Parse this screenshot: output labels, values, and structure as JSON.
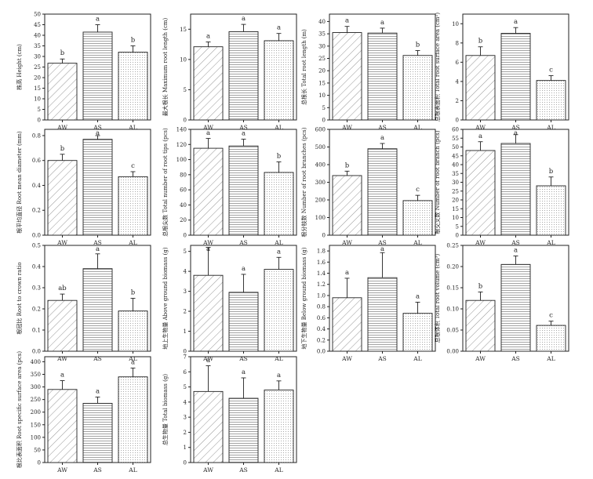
{
  "chart_data": [
    {
      "type": "bar",
      "ylabel": "株高 Height (cm)",
      "categories": [
        "AW",
        "AS",
        "AL"
      ],
      "values": [
        26.8,
        41.5,
        32.0
      ],
      "errors": [
        2.0,
        3.5,
        3.0
      ],
      "letters": [
        "b",
        "a",
        "b"
      ],
      "ylim": [
        0,
        50
      ],
      "yticks": [
        "0",
        "5",
        "10",
        "15",
        "20",
        "25",
        "30",
        "35",
        "40",
        "45",
        "50"
      ],
      "grid": false
    },
    {
      "type": "bar",
      "ylabel": "最大根长 Maximum root length (cm)",
      "categories": [
        "AW",
        "AS",
        "AL"
      ],
      "values": [
        12.1,
        14.6,
        13.1
      ],
      "errors": [
        0.8,
        1.2,
        1.2
      ],
      "letters": [
        "a",
        "a",
        "a"
      ],
      "ylim": [
        0,
        17.5
      ],
      "yticks": [
        "0",
        "5",
        "10",
        "15"
      ],
      "grid": false
    },
    {
      "type": "bar",
      "ylabel": "总根长 Total root length (m)",
      "categories": [
        "AW",
        "AS",
        "AL"
      ],
      "values": [
        35.5,
        35.3,
        26.2
      ],
      "errors": [
        2.5,
        2.0,
        2.0
      ],
      "letters": [
        "a",
        "a",
        "b"
      ],
      "ylim": [
        0,
        43
      ],
      "yticks": [
        "0",
        "5",
        "10",
        "15",
        "20",
        "25",
        "30",
        "35",
        "40"
      ],
      "grid": false
    },
    {
      "type": "bar",
      "ylabel": "总根表面积 Total root surface area (cm²)",
      "categories": [
        "AW",
        "AS",
        "AL"
      ],
      "values": [
        6.7,
        9.0,
        4.1
      ],
      "errors": [
        0.9,
        0.6,
        0.5
      ],
      "letters": [
        "b",
        "a",
        "c"
      ],
      "ylim": [
        0,
        11
      ],
      "yticks": [
        "0",
        "2",
        "4",
        "6",
        "8",
        "10"
      ],
      "grid": false
    },
    {
      "type": "bar",
      "ylabel": "根平均直径 Root mean diameter (mm)",
      "categories": [
        "AW",
        "AS",
        "AL"
      ],
      "values": [
        0.6,
        0.77,
        0.47
      ],
      "errors": [
        0.05,
        0.03,
        0.04
      ],
      "letters": [
        "b",
        "a",
        "c"
      ],
      "ylim": [
        0,
        0.85
      ],
      "yticks": [
        "0.0",
        "0.2",
        "0.4",
        "0.6",
        "0.8"
      ],
      "grid": false
    },
    {
      "type": "bar",
      "ylabel": "总根尖数 Total number of root tips (pcs)",
      "categories": [
        "AW",
        "AS",
        "AL"
      ],
      "values": [
        115,
        118,
        83
      ],
      "errors": [
        13,
        9,
        14
      ],
      "letters": [
        "a",
        "a",
        "b"
      ],
      "ylim": [
        0,
        140
      ],
      "yticks": [
        "0",
        "20",
        "40",
        "60",
        "80",
        "100",
        "120",
        "140"
      ],
      "grid": false
    },
    {
      "type": "bar",
      "ylabel": "根分枝数 Number of root branches (pcs)",
      "categories": [
        "AW",
        "AS",
        "AL"
      ],
      "values": [
        338,
        490,
        196
      ],
      "errors": [
        25,
        30,
        30
      ],
      "letters": [
        "b",
        "a",
        "c"
      ],
      "ylim": [
        0,
        600
      ],
      "yticks": [
        "0",
        "100",
        "200",
        "300",
        "400",
        "500",
        "600"
      ],
      "grid": false
    },
    {
      "type": "bar",
      "ylabel": "根交叉数 Number of root branch (pcs)",
      "categories": [
        "AW",
        "AS",
        "AL"
      ],
      "values": [
        48,
        52,
        28
      ],
      "errors": [
        5,
        5,
        5
      ],
      "letters": [
        "a",
        "a",
        "b"
      ],
      "ylim": [
        0,
        60
      ],
      "yticks": [
        "0",
        "5",
        "10",
        "15",
        "20",
        "25",
        "30",
        "35",
        "40",
        "45",
        "50",
        "55",
        "60"
      ],
      "grid": false
    },
    {
      "type": "bar",
      "ylabel": "根冠比 Root to crown ratio",
      "categories": [
        "AW",
        "AS",
        "AL"
      ],
      "values": [
        0.24,
        0.39,
        0.19
      ],
      "errors": [
        0.03,
        0.07,
        0.06
      ],
      "letters": [
        "ab",
        "a",
        "b"
      ],
      "ylim": [
        0,
        0.5
      ],
      "yticks": [
        "0.0",
        "0.1",
        "0.2",
        "0.3",
        "0.4",
        "0.5"
      ],
      "grid": false
    },
    {
      "type": "bar",
      "ylabel": "地上生物量 Above ground biomass (g)",
      "categories": [
        "AW",
        "AS",
        "AL"
      ],
      "values": [
        3.8,
        2.95,
        4.1
      ],
      "errors": [
        1.4,
        0.9,
        0.6
      ],
      "letters": [
        "a",
        "a",
        "a"
      ],
      "ylim": [
        0,
        5.3
      ],
      "yticks": [
        "0",
        "1",
        "2",
        "3",
        "4",
        "5"
      ],
      "grid": false
    },
    {
      "type": "bar",
      "ylabel": "地下生物量 Below ground biomass (g)",
      "categories": [
        "AW",
        "AS",
        "AL"
      ],
      "values": [
        0.96,
        1.32,
        0.68
      ],
      "errors": [
        0.35,
        0.45,
        0.2
      ],
      "letters": [
        "a",
        "a",
        "a"
      ],
      "ylim": [
        0,
        1.9
      ],
      "yticks": [
        "0.0",
        "0.2",
        "0.4",
        "0.6",
        "0.8",
        "1.0",
        "1.2",
        "1.4",
        "1.6",
        "1.8"
      ],
      "grid": false
    },
    {
      "type": "bar",
      "ylabel": "总根体积 Total root volume (cm³)",
      "categories": [
        "AW",
        "AS",
        "AL"
      ],
      "values": [
        0.12,
        0.205,
        0.061
      ],
      "errors": [
        0.02,
        0.02,
        0.01
      ],
      "letters": [
        "b",
        "a",
        "c"
      ],
      "ylim": [
        0,
        0.25
      ],
      "yticks": [
        "0.00",
        "0.05",
        "0.10",
        "0.15",
        "0.20",
        "0.25"
      ],
      "grid": false
    },
    {
      "type": "bar",
      "ylabel": "根比表面积 Root specific surface area (pcs)",
      "categories": [
        "AW",
        "AS",
        "AL"
      ],
      "values": [
        290,
        235,
        340
      ],
      "errors": [
        35,
        25,
        35
      ],
      "letters": [
        "a",
        "a",
        "a"
      ],
      "ylim": [
        0,
        420
      ],
      "yticks": [
        "0",
        "50",
        "100",
        "150",
        "200",
        "250",
        "300",
        "350",
        "400"
      ],
      "grid": false
    },
    {
      "type": "bar",
      "ylabel": "总生物量 Total biomass (g)",
      "categories": [
        "AW",
        "AS",
        "AL"
      ],
      "values": [
        4.7,
        4.25,
        4.8
      ],
      "errors": [
        1.7,
        1.35,
        0.6
      ],
      "letters": [
        "a",
        "a",
        "a"
      ],
      "ylim": [
        0,
        7
      ],
      "yticks": [
        "0",
        "1",
        "2",
        "3",
        "4",
        "5",
        "6",
        "7"
      ],
      "grid": false
    }
  ],
  "colors": {
    "axis": "#222222",
    "bar_fill": "#ffffff",
    "hatch": "#888888"
  }
}
